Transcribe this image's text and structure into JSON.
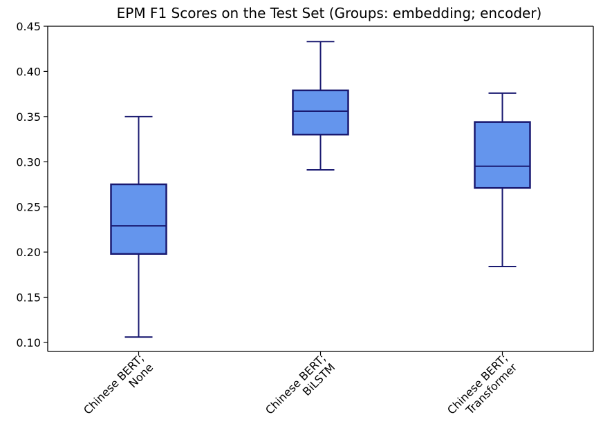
{
  "chart_data": {
    "type": "box",
    "title": "EPM F1 Scores on the Test Set (Groups: embedding; encoder)",
    "xlabel": "",
    "ylabel": "",
    "ylim": [
      0.09,
      0.45
    ],
    "y_ticks": [
      "0.10",
      "0.15",
      "0.20",
      "0.25",
      "0.30",
      "0.35",
      "0.40",
      "0.45"
    ],
    "y_tick_values": [
      0.1,
      0.15,
      0.2,
      0.25,
      0.3,
      0.35,
      0.4,
      0.45
    ],
    "categories": [
      [
        "Chinese BERT;",
        "None"
      ],
      [
        "Chinese BERT;",
        "BiLSTM"
      ],
      [
        "Chinese BERT;",
        "Transformer"
      ]
    ],
    "boxes": [
      {
        "whisker_low": 0.106,
        "q1": 0.198,
        "median": 0.229,
        "q3": 0.275,
        "whisker_high": 0.35
      },
      {
        "whisker_low": 0.291,
        "q1": 0.33,
        "median": 0.356,
        "q3": 0.379,
        "whisker_high": 0.433
      },
      {
        "whisker_low": 0.184,
        "q1": 0.271,
        "median": 0.295,
        "q3": 0.344,
        "whisker_high": 0.376
      }
    ],
    "grid": false,
    "colors": {
      "box_fill": "#6495ED",
      "box_edge": "#191970",
      "axis": "#000000"
    }
  }
}
